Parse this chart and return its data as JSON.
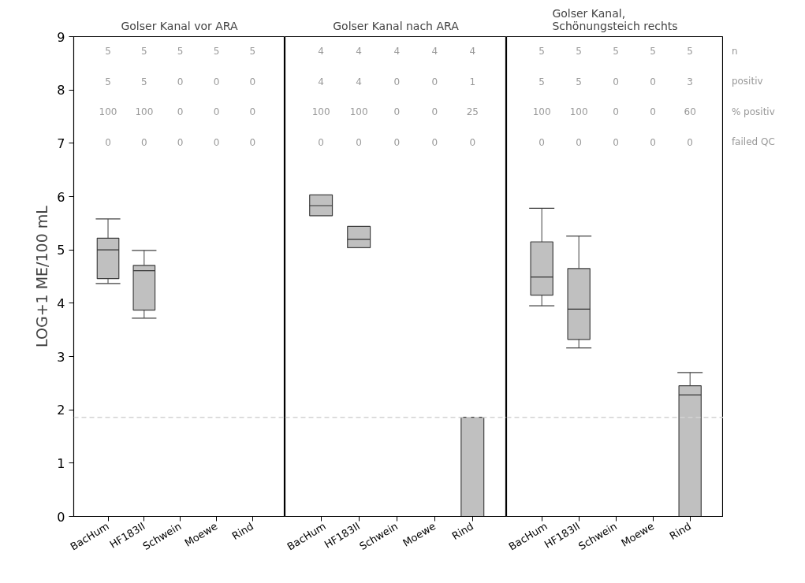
{
  "chart_data": [
    {
      "type": "box",
      "title": "Golser Kanal vor ARA",
      "ylabel": "LOG+1 ME/100 mL",
      "categories": [
        "BacHum",
        "HF183II",
        "Schwein",
        "Moewe",
        "Rind"
      ],
      "color": "#c0c0c0",
      "ylim": [
        0,
        9
      ],
      "yticks": [
        0,
        1,
        2,
        3,
        4,
        5,
        6,
        7,
        8,
        9
      ],
      "boxes": [
        {
          "low": 4.37,
          "q1": 4.46,
          "median": 5.0,
          "q3": 5.22,
          "high": 5.58
        },
        {
          "low": 3.72,
          "q1": 3.87,
          "median": 4.61,
          "q3": 4.71,
          "high": 4.99
        },
        {
          "low": 0,
          "q1": 0,
          "median": 0,
          "q3": 0,
          "high": 0
        },
        {
          "low": 0,
          "q1": 0,
          "median": 0,
          "q3": 0,
          "high": 0
        },
        {
          "low": 0,
          "q1": 0,
          "median": 0,
          "q3": 0,
          "high": 0
        }
      ],
      "ref_lines": [
        {
          "axis": "y",
          "value": 1.86,
          "color": "#d3d3d3",
          "line_style": "dashed"
        }
      ],
      "annotations": [
        "5",
        "5",
        "5",
        "5",
        "5",
        "5",
        "5",
        "0",
        "0",
        "0",
        "100",
        "100",
        "0",
        "0",
        "0",
        "0",
        "0",
        "0",
        "0",
        "0"
      ]
    },
    {
      "type": "box",
      "title": "Golser Kanal nach ARA",
      "categories": [
        "BacHum",
        "HF183II",
        "Schwein",
        "Moewe",
        "Rind"
      ],
      "color": "#c0c0c0",
      "ylim": [
        0,
        9
      ],
      "yticks": [
        0,
        1,
        2,
        3,
        4,
        5,
        6,
        7,
        8,
        9
      ],
      "tick_labels": "x",
      "boxes": [
        {
          "low": 5.64,
          "q1": 5.64,
          "median": 5.83,
          "q3": 6.03,
          "high": 6.03
        },
        {
          "low": 5.04,
          "q1": 5.04,
          "median": 5.2,
          "q3": 5.44,
          "high": 5.44
        },
        {
          "low": 0,
          "q1": 0,
          "median": 0,
          "q3": 0,
          "high": 0
        },
        {
          "low": 0,
          "q1": 0,
          "median": 0,
          "q3": 0,
          "high": 0
        },
        {
          "low": 0,
          "q1": 0,
          "median": 0,
          "q3": 1.86,
          "high": 1.86
        }
      ],
      "ref_lines": [
        {
          "axis": "y",
          "value": 1.86,
          "color": "#d3d3d3",
          "line_style": "dashed"
        }
      ],
      "annotations": [
        "4",
        "4",
        "4",
        "4",
        "4",
        "4",
        "4",
        "0",
        "0",
        "1",
        "100",
        "100",
        "0",
        "0",
        "25",
        "0",
        "0",
        "0",
        "0",
        "0"
      ]
    },
    {
      "type": "box",
      "title": "Golser Kanal,\nSchönungsteich rechts",
      "categories": [
        "BacHum",
        "HF183II",
        "Schwein",
        "Moewe",
        "Rind"
      ],
      "color": "#c0c0c0",
      "ylim": [
        0,
        9
      ],
      "yticks": [
        0,
        1,
        2,
        3,
        4,
        5,
        6,
        7,
        8,
        9
      ],
      "tick_labels": "x",
      "boxes": [
        {
          "low": 3.95,
          "q1": 4.15,
          "median": 4.49,
          "q3": 5.15,
          "high": 5.78
        },
        {
          "low": 3.16,
          "q1": 3.32,
          "median": 3.89,
          "q3": 4.65,
          "high": 5.26
        },
        {
          "low": 0,
          "q1": 0,
          "median": 0,
          "q3": 0,
          "high": 0
        },
        {
          "low": 0,
          "q1": 0,
          "median": 0,
          "q3": 0,
          "high": 0
        },
        {
          "low": 0,
          "q1": 0,
          "median": 2.28,
          "q3": 2.45,
          "high": 2.7
        }
      ],
      "ref_lines": [
        {
          "axis": "y",
          "value": 1.86,
          "color": "#d3d3d3",
          "line_style": "dashed"
        }
      ],
      "annotations": [
        "5",
        "5",
        "5",
        "5",
        "5",
        "5",
        "5",
        "0",
        "0",
        "3",
        "100",
        "100",
        "0",
        "0",
        "60",
        "0",
        "0",
        "0",
        "0",
        "0",
        "n",
        "positiv",
        "% positiv",
        "failed QC"
      ]
    }
  ]
}
